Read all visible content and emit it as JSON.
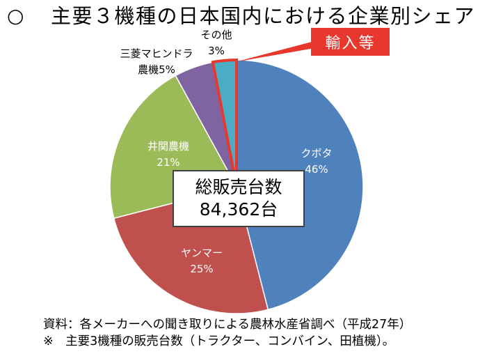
{
  "slide": {
    "bullet": "○"
  },
  "chart_data": {
    "type": "pie",
    "title": "主要３機種の日本国内における企業別シェア",
    "categories": [
      "クボタ",
      "ヤンマー",
      "井関農機",
      "三菱マヒンドラ農機",
      "その他"
    ],
    "values": [
      46,
      25,
      21,
      5,
      3
    ],
    "unit": "%",
    "data_labels": [
      [
        "クボタ",
        "46%"
      ],
      [
        "ヤンマー",
        "25%"
      ],
      [
        "井関農機",
        "21%"
      ],
      [
        "三菱マヒンドラ",
        "農機5%"
      ],
      [
        "その他",
        "3%"
      ]
    ],
    "colors": [
      "#4F81BD",
      "#C0504D",
      "#9BBB59",
      "#8064A2",
      "#4BACC6"
    ],
    "label_colors": [
      "#FFFFFF",
      "#FFFFFF",
      "#FFFFFF",
      "#000000",
      "#000000"
    ],
    "center_box": {
      "label": "総販売台数",
      "value": "84,362台"
    },
    "callout": {
      "text": "輸入等",
      "slice": "その他",
      "color": "#E8382E"
    }
  },
  "notes": [
    "資料：各メーカーへの聞き取りによる農林水産省調べ（平成27年）",
    "※　主要3機種の販売台数（トラクター、コンバイン、田植機）。"
  ]
}
